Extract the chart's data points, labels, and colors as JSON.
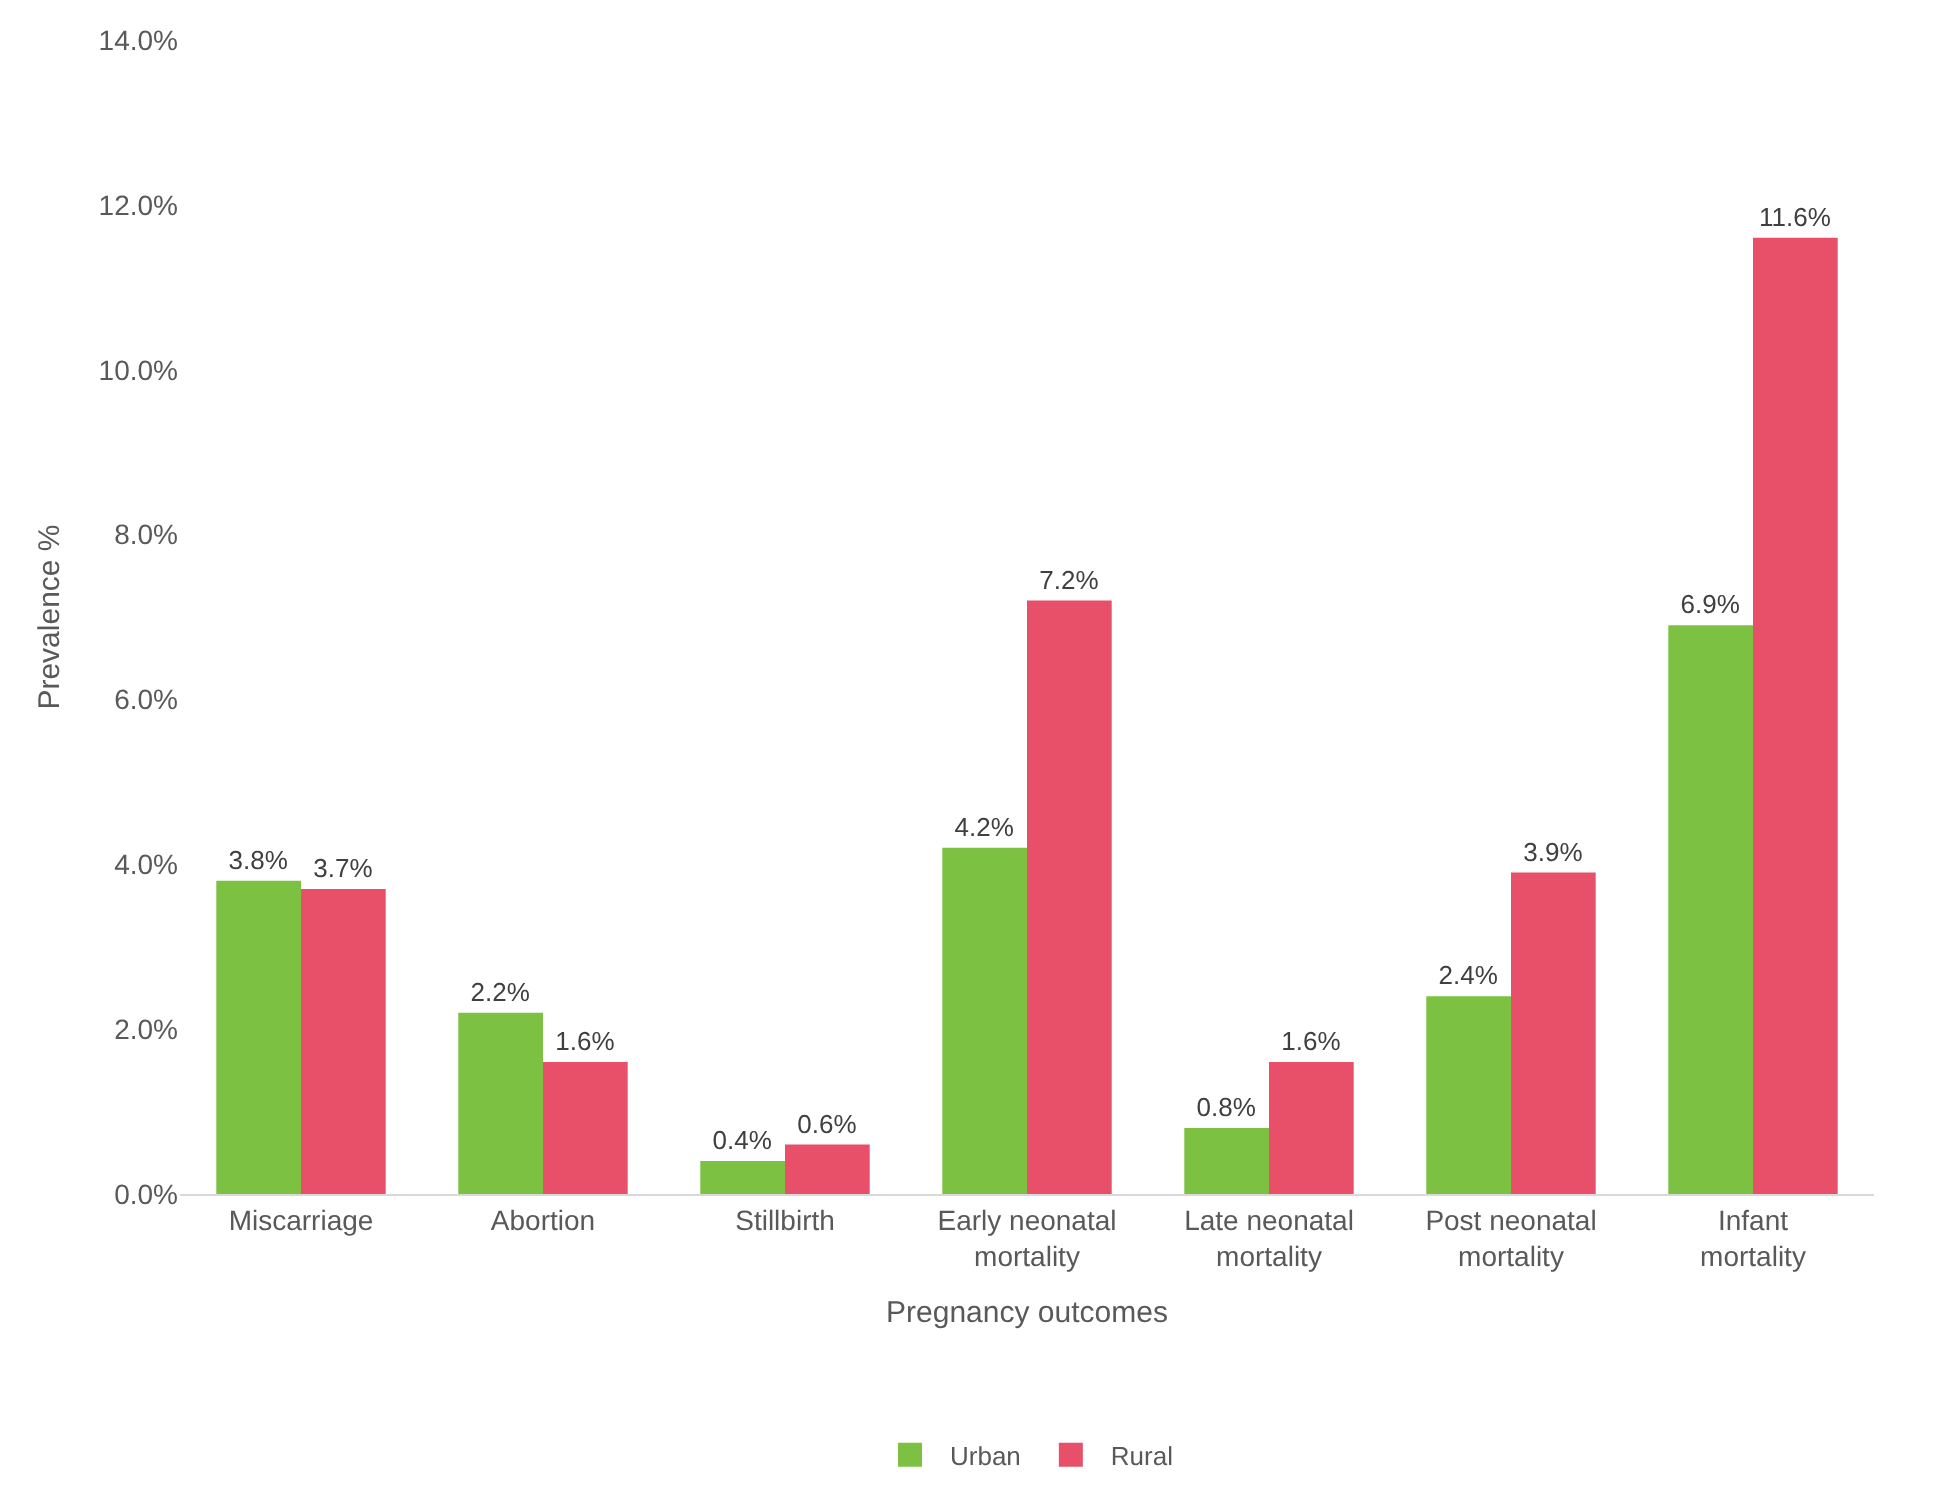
{
  "chart_data": {
    "type": "bar",
    "xlabel": "Pregnancy outcomes",
    "ylabel": "Prevalence %",
    "categories": [
      "Miscarriage",
      "Abortion",
      "Stillbirth",
      "Early neonatal mortality",
      "Late neonatal mortality",
      "Post neonatal mortality",
      "Infant mortality"
    ],
    "series": [
      {
        "name": "Urban",
        "color": "#7dc142",
        "values": [
          3.8,
          2.2,
          0.4,
          4.2,
          0.8,
          2.4,
          6.9
        ],
        "value_labels": [
          "3.8%",
          "2.2%",
          "0.4%",
          "4.2%",
          "0.8%",
          "2.4%",
          "6.9%"
        ]
      },
      {
        "name": "Rural",
        "color": "#e8506a",
        "values": [
          3.7,
          1.6,
          0.6,
          7.2,
          1.6,
          3.9,
          11.6
        ],
        "value_labels": [
          "3.7%",
          "1.6%",
          "0.6%",
          "7.2%",
          "1.6%",
          "3.9%",
          "11.6%"
        ]
      }
    ],
    "ylim": [
      0,
      14
    ],
    "yticks": [
      {
        "value": 0,
        "label": "0.0%"
      },
      {
        "value": 2,
        "label": "2.0%"
      },
      {
        "value": 4,
        "label": "4.0%"
      },
      {
        "value": 6,
        "label": "6.0%"
      },
      {
        "value": 8,
        "label": "8.0%"
      },
      {
        "value": 10,
        "label": "10.0%"
      },
      {
        "value": 12,
        "label": "12.0%"
      },
      {
        "value": 14,
        "label": "14.0%"
      }
    ],
    "grid": false,
    "legend": "bottom"
  }
}
